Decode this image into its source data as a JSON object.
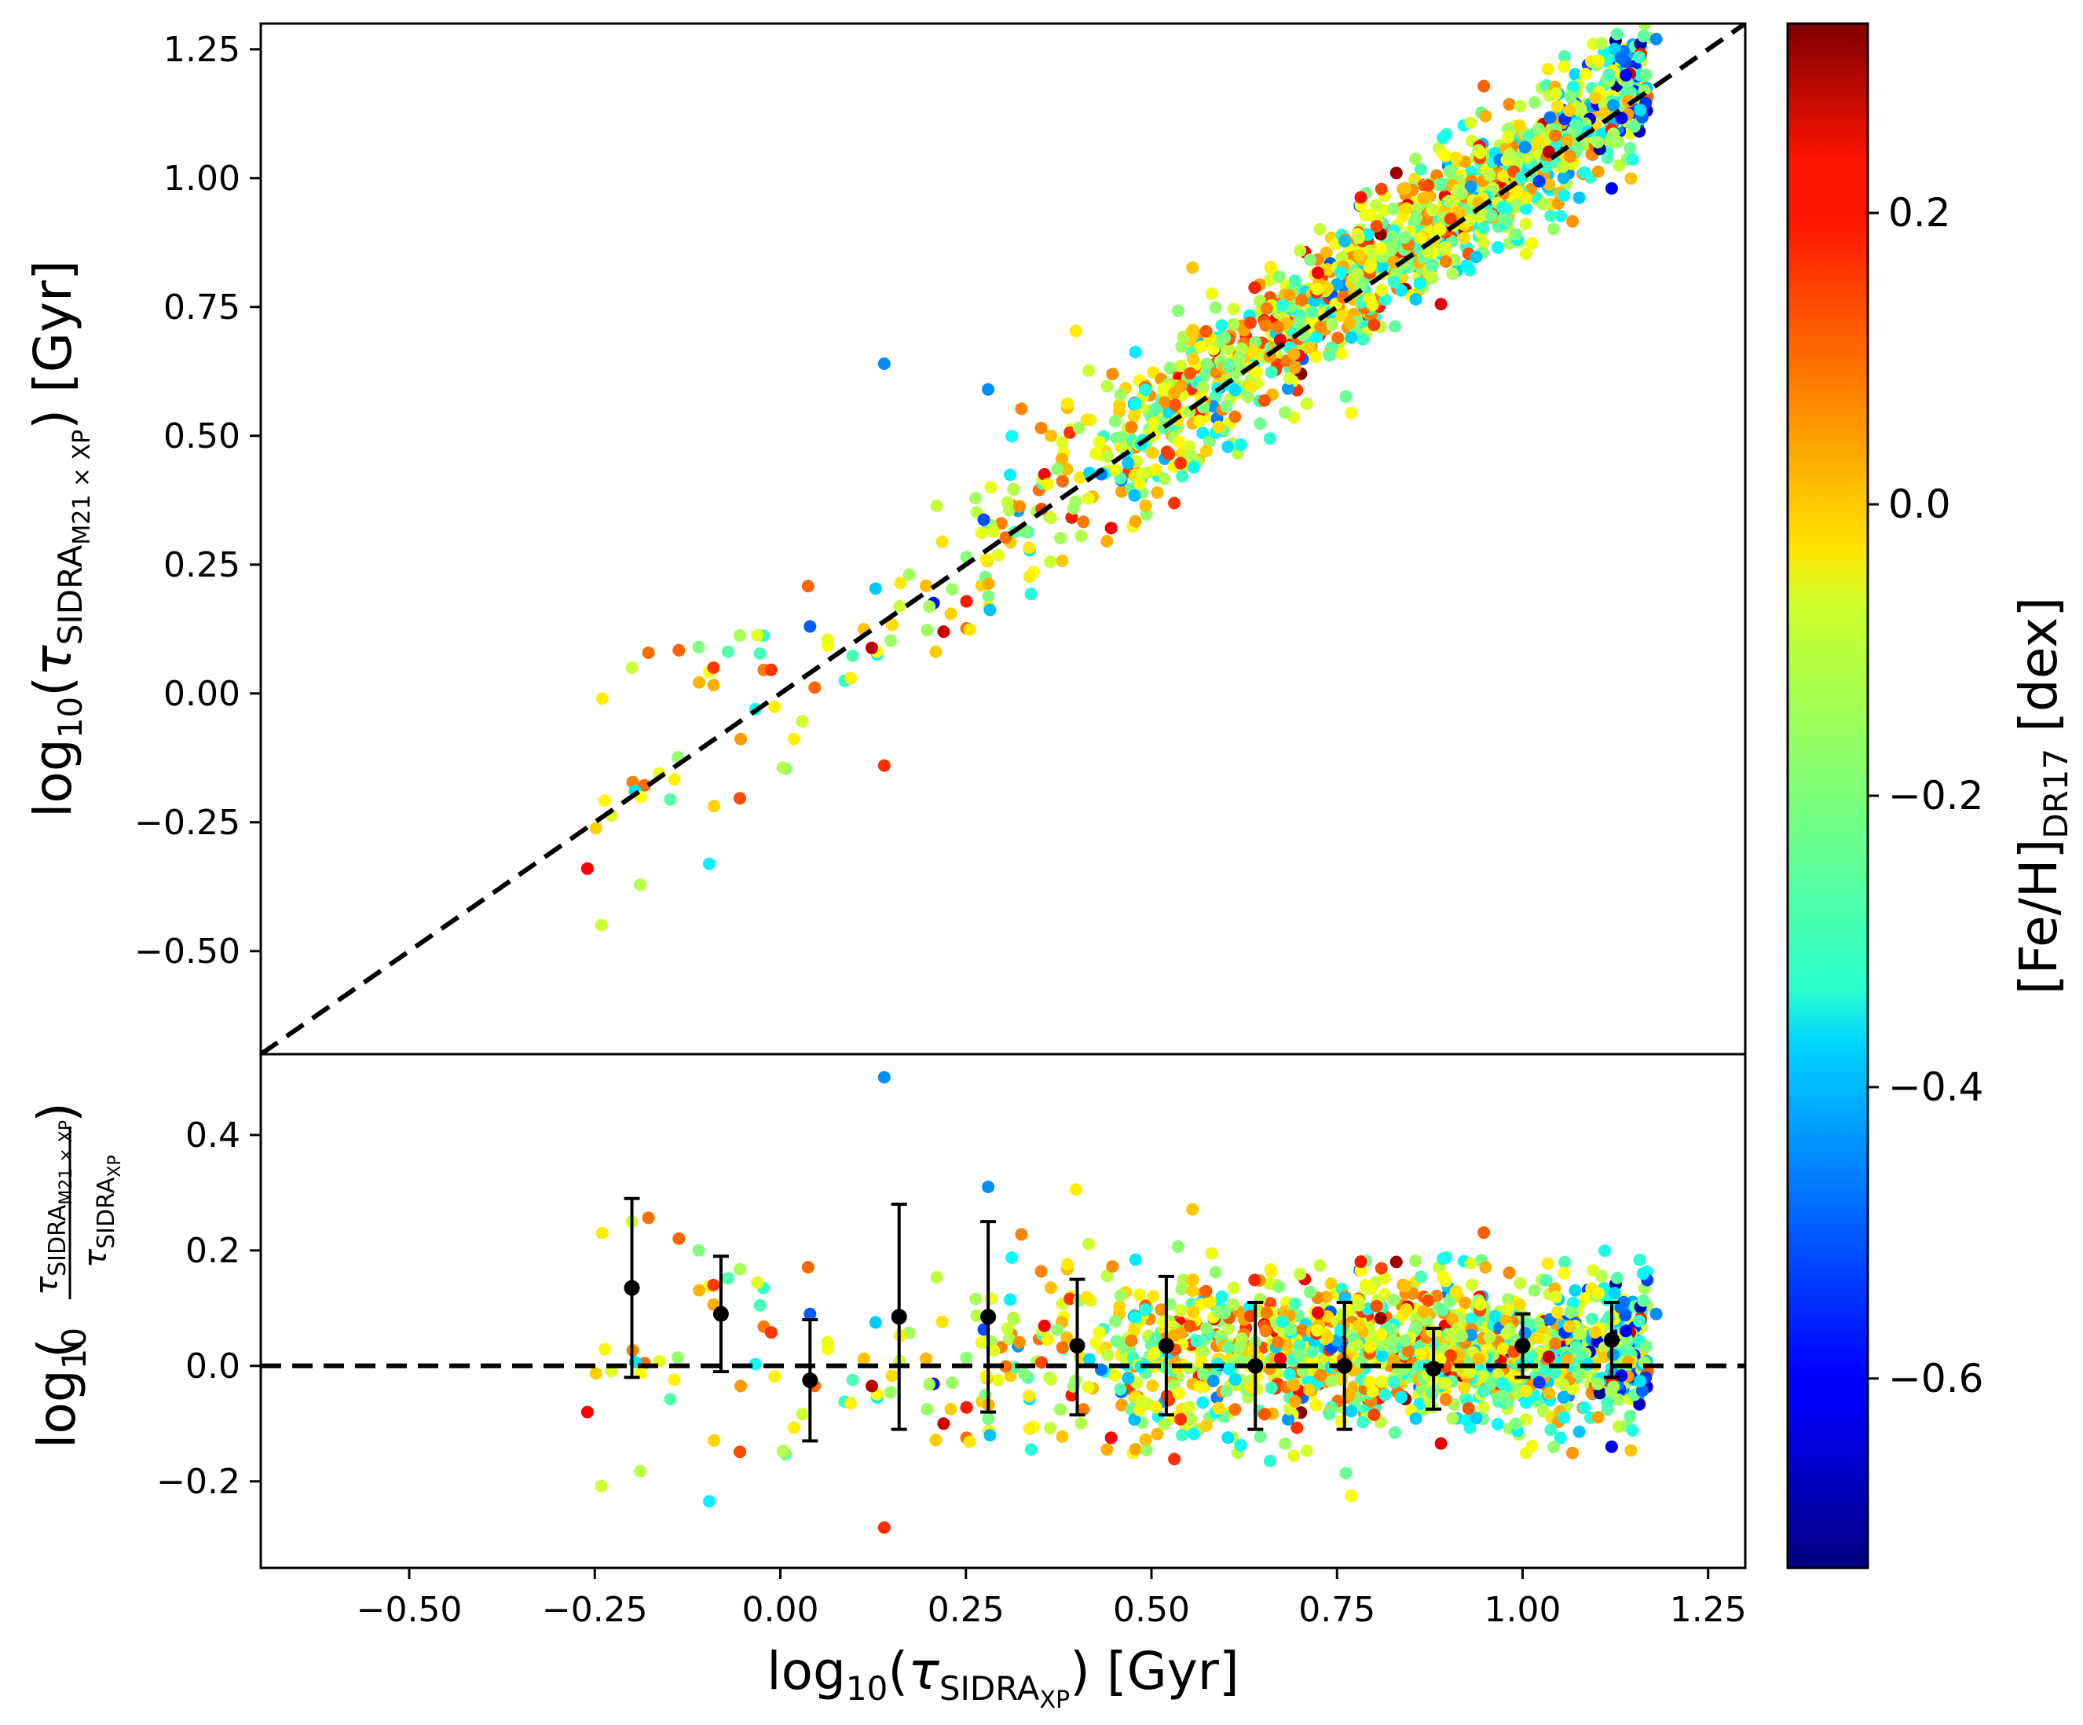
{
  "chart_data": [
    {
      "panel": "top",
      "type": "scatter",
      "xlabel": "log10(τ SIDRA XP) [Gyr]",
      "ylabel": "log10(τ SIDRA M21×XP) [Gyr]",
      "xlim": [
        -0.7,
        1.3
      ],
      "ylim": [
        -0.7,
        1.3
      ],
      "x_ticks": [
        "−0.50",
        "−0.25",
        "0.00",
        "0.25",
        "0.50",
        "0.75",
        "1.00",
        "1.25"
      ],
      "y_ticks": [
        "−0.50",
        "−0.25",
        "0.00",
        "0.25",
        "0.50",
        "0.75",
        "1.00",
        "1.25"
      ],
      "reference_line": {
        "style": "dashed",
        "slope": 1,
        "intercept": 0
      },
      "points_note": "approximately 1500 stars, colored by [Fe/H] DR17",
      "sample_points": [
        {
          "x": -0.26,
          "y": -0.34,
          "feh": 0.2
        },
        {
          "x": -0.24,
          "y": -0.01,
          "feh": -0.05
        },
        {
          "x": -0.2,
          "y": 0.05,
          "feh": -0.12
        },
        {
          "x": -0.11,
          "y": 0.09,
          "feh": -0.2
        },
        {
          "x": -0.09,
          "y": 0.05,
          "feh": 0.14
        },
        {
          "x": 0.04,
          "y": 0.13,
          "feh": -0.5
        },
        {
          "x": 0.14,
          "y": 0.64,
          "feh": -0.45
        },
        {
          "x": 0.14,
          "y": -0.14,
          "feh": 0.15
        },
        {
          "x": 0.22,
          "y": 0.12,
          "feh": 0.25
        },
        {
          "x": 0.28,
          "y": 0.59,
          "feh": -0.45
        },
        {
          "x": 0.83,
          "y": 1.01,
          "feh": 0.3
        },
        {
          "x": 1.12,
          "y": 0.98,
          "feh": -0.6
        },
        {
          "x": 1.18,
          "y": 1.27,
          "feh": -0.45
        }
      ]
    },
    {
      "panel": "bottom",
      "type": "scatter",
      "ylabel": "log10(τ SIDRA M21×XP / τ SIDRA XP)",
      "xlim": [
        -0.7,
        1.3
      ],
      "ylim": [
        -0.35,
        0.54
      ],
      "y_ticks": [
        "−0.2",
        "0.0",
        "0.2",
        "0.4"
      ],
      "reference_line": {
        "style": "dashed",
        "y": 0
      },
      "binned_medians": [
        {
          "x": -0.2,
          "y": 0.135,
          "err_low": -0.02,
          "err_high": 0.29
        },
        {
          "x": -0.08,
          "y": 0.09,
          "err_low": -0.01,
          "err_high": 0.19
        },
        {
          "x": 0.04,
          "y": -0.025,
          "err_low": -0.13,
          "err_high": 0.08
        },
        {
          "x": 0.16,
          "y": 0.085,
          "err_low": -0.11,
          "err_high": 0.28
        },
        {
          "x": 0.28,
          "y": 0.085,
          "err_low": -0.08,
          "err_high": 0.25
        },
        {
          "x": 0.4,
          "y": 0.035,
          "err_low": -0.085,
          "err_high": 0.15
        },
        {
          "x": 0.52,
          "y": 0.035,
          "err_low": -0.085,
          "err_high": 0.155
        },
        {
          "x": 0.64,
          "y": 0.0,
          "err_low": -0.11,
          "err_high": 0.11
        },
        {
          "x": 0.76,
          "y": 0.0,
          "err_low": -0.11,
          "err_high": 0.11
        },
        {
          "x": 0.88,
          "y": -0.005,
          "err_low": -0.075,
          "err_high": 0.065
        },
        {
          "x": 1.0,
          "y": 0.035,
          "err_low": -0.02,
          "err_high": 0.09
        },
        {
          "x": 1.12,
          "y": 0.045,
          "err_low": -0.02,
          "err_high": 0.11
        }
      ]
    },
    {
      "panel": "colorbar",
      "type": "colorbar",
      "label": "[Fe/H] DR17 [dex]",
      "range": [
        -0.73,
        0.33
      ],
      "ticks": [
        "−0.6",
        "−0.4",
        "−0.2",
        "0.0",
        "0.2"
      ],
      "colormap": "jet"
    }
  ],
  "colors": {
    "dashed_line": "#000000",
    "median_marker": "#000000"
  }
}
